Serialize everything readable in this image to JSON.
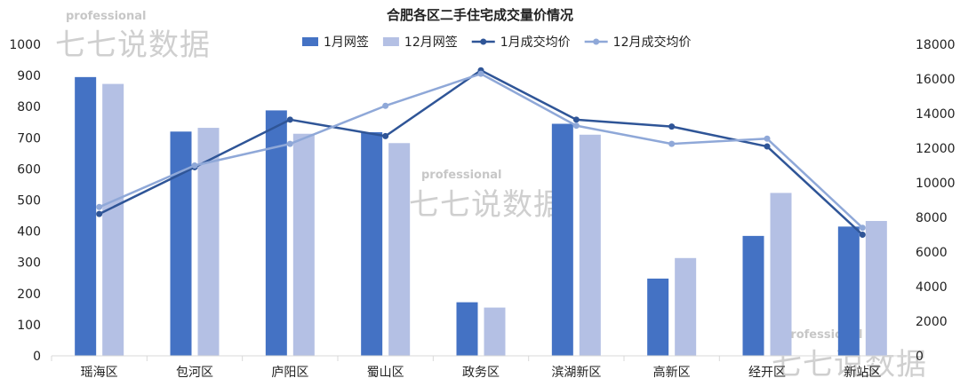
{
  "watermark": {
    "line1": "professional",
    "line2": "七七说数据"
  },
  "chart_data": {
    "type": "bar+line",
    "title": "合肥各区二手住宅成交量价情况",
    "categories": [
      "瑶海区",
      "包河区",
      "庐阳区",
      "蜀山区",
      "政务区",
      "滨湖新区",
      "高新区",
      "经开区",
      "新站区"
    ],
    "legend_position": "top",
    "grid": false,
    "y_left": {
      "min": 0,
      "max": 1000,
      "step": 100
    },
    "y_right": {
      "min": 0,
      "max": 18000,
      "step": 2000
    },
    "series": [
      {
        "name": "1月网签",
        "kind": "bar",
        "axis": "left",
        "color": "#4472c4",
        "values": [
          895,
          720,
          788,
          718,
          172,
          745,
          248,
          385,
          415
        ]
      },
      {
        "name": "12月网签",
        "kind": "bar",
        "axis": "left",
        "color": "#b4c0e4",
        "values": [
          873,
          732,
          713,
          683,
          155,
          710,
          314,
          523,
          433
        ]
      },
      {
        "name": "1月成交均价",
        "kind": "line",
        "axis": "right",
        "color": "#2f5597",
        "values": [
          8200,
          10900,
          13650,
          12700,
          16500,
          13650,
          13250,
          12100,
          7000
        ]
      },
      {
        "name": "12月成交均价",
        "kind": "line",
        "axis": "right",
        "color": "#8fa8d8",
        "values": [
          8600,
          11000,
          12250,
          14450,
          16300,
          13300,
          12250,
          12550,
          7400
        ]
      }
    ]
  }
}
